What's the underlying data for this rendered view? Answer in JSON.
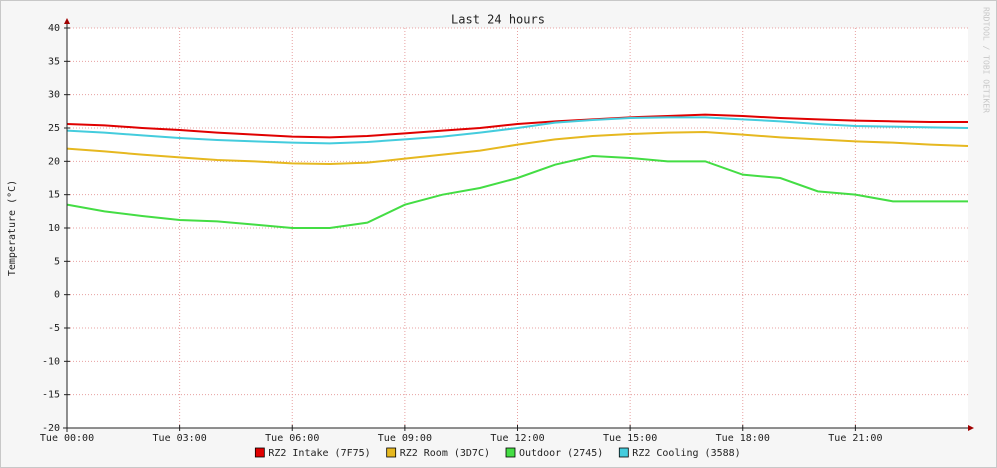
{
  "chart_data": {
    "type": "line",
    "title": "Last 24 hours",
    "y_label": "Temperature (°C)",
    "side_text": "RRDTOOL / TOBI OETIKER",
    "x": [
      0,
      1,
      2,
      3,
      4,
      5,
      6,
      7,
      8,
      9,
      10,
      11,
      12,
      13,
      14,
      15,
      16,
      17,
      18,
      19,
      20,
      21,
      22,
      23,
      24
    ],
    "xlim": [
      0,
      24
    ],
    "xticks": [
      {
        "value": 0,
        "label": "Tue 00:00"
      },
      {
        "value": 3,
        "label": "Tue 03:00"
      },
      {
        "value": 6,
        "label": "Tue 06:00"
      },
      {
        "value": 9,
        "label": "Tue 09:00"
      },
      {
        "value": 12,
        "label": "Tue 12:00"
      },
      {
        "value": 15,
        "label": "Tue 15:00"
      },
      {
        "value": 18,
        "label": "Tue 18:00"
      },
      {
        "value": 21,
        "label": "Tue 21:00"
      }
    ],
    "ylim": [
      -20,
      40
    ],
    "yticks": [
      -20,
      -15,
      -10,
      -5,
      0,
      5,
      10,
      15,
      20,
      25,
      30,
      35,
      40
    ],
    "grid": true,
    "series": [
      {
        "name": "RZ2 Intake (7F75)",
        "color": "#e00000",
        "values": [
          25.6,
          25.4,
          25.0,
          24.7,
          24.3,
          24.0,
          23.7,
          23.6,
          23.8,
          24.2,
          24.6,
          25.0,
          25.6,
          26.0,
          26.3,
          26.6,
          26.8,
          27.0,
          26.8,
          26.5,
          26.3,
          26.1,
          26.0,
          25.9,
          25.9
        ]
      },
      {
        "name": "RZ2 Room (3D7C)",
        "color": "#e6b820",
        "values": [
          21.9,
          21.5,
          21.0,
          20.6,
          20.2,
          20.0,
          19.7,
          19.6,
          19.8,
          20.4,
          21.0,
          21.6,
          22.5,
          23.3,
          23.8,
          24.1,
          24.3,
          24.4,
          24.0,
          23.6,
          23.3,
          23.0,
          22.8,
          22.5,
          22.3
        ]
      },
      {
        "name": "Outdoor (2745)",
        "color": "#44dd44",
        "values": [
          13.5,
          12.5,
          11.8,
          11.2,
          11.0,
          10.5,
          10.0,
          10.0,
          10.8,
          13.5,
          15.0,
          16.0,
          17.5,
          19.5,
          20.8,
          20.5,
          20.0,
          20.0,
          18.0,
          17.5,
          15.5,
          15.0,
          14.0,
          14.0,
          14.0
        ]
      },
      {
        "name": "RZ2 Cooling (3588)",
        "color": "#44ccdd",
        "values": [
          24.6,
          24.3,
          23.9,
          23.5,
          23.2,
          23.0,
          22.8,
          22.7,
          22.9,
          23.3,
          23.7,
          24.3,
          25.0,
          25.8,
          26.2,
          26.5,
          26.6,
          26.6,
          26.3,
          26.0,
          25.6,
          25.3,
          25.2,
          25.1,
          25.0
        ]
      }
    ]
  }
}
